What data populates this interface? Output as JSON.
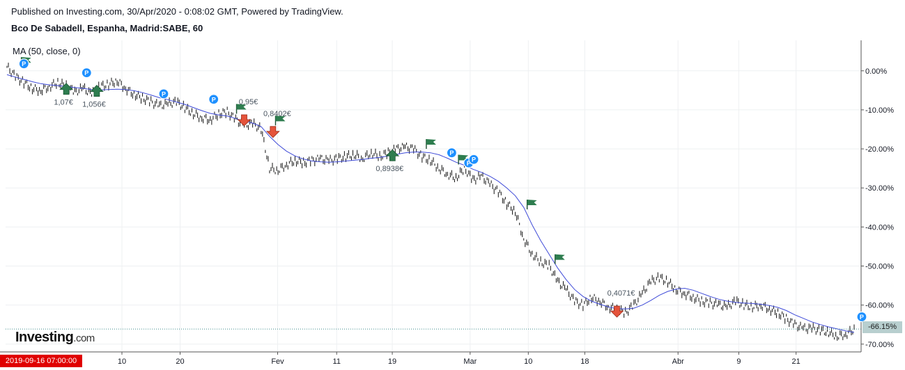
{
  "header": {
    "published": "Published on Investing.com, 30/Apr/2020 - 0:08:02 GMT, Powered by TradingView.",
    "symbol": "Bco De Sabadell, Espanha, Madrid:SABE, 60"
  },
  "indicator": {
    "label": "MA (50, close, 0)"
  },
  "logo": {
    "brand": "Investing",
    "suffix": ".com"
  },
  "cursor_date": "2019-09-16 07:00:00",
  "last_value": "-66.15%",
  "colors": {
    "ma": "#3f4bd8",
    "bars": "#111111",
    "buy": "#2e7d4f",
    "sell": "#e5533b",
    "pin": "#1e90ff",
    "last_badge": "#b8cfcf",
    "date_flag": "#e00000",
    "grid": "#eef0f2"
  },
  "chart_data": {
    "type": "line",
    "title": "",
    "xlabel": "",
    "ylabel": "",
    "x_ticks": [
      "10",
      "20",
      "Fev",
      "11",
      "19",
      "Mar",
      "10",
      "18",
      "Abr",
      "9",
      "21"
    ],
    "y_ticks": [
      "0.00%",
      "-10.00%",
      "-20.00%",
      "-30.00%",
      "-40.00%",
      "-50.00%",
      "-60.00%",
      "-70.00%"
    ],
    "y_values_ticks": [
      0,
      -10,
      -20,
      -30,
      -40,
      -50,
      -60,
      -70
    ],
    "ylim": [
      -72,
      7.8
    ],
    "x_range": [
      0,
      100
    ],
    "price_x": [
      0,
      1,
      2,
      3,
      4,
      5,
      6,
      7,
      8,
      9,
      10,
      11,
      12,
      13,
      14,
      15,
      16,
      17,
      18,
      19,
      20,
      21,
      22,
      23,
      24,
      25,
      26,
      27,
      28,
      29,
      30,
      31,
      32,
      33,
      34,
      35,
      36,
      37,
      38,
      39,
      40,
      41,
      42,
      43,
      44,
      45,
      46,
      47,
      48,
      49,
      50,
      51,
      52,
      53,
      54,
      55,
      56,
      57,
      58,
      59,
      60,
      61,
      62,
      63,
      64,
      65,
      66,
      67,
      68,
      69,
      70,
      71,
      72,
      73,
      74,
      75,
      76,
      77,
      78,
      79,
      80,
      81,
      82,
      83,
      84,
      85,
      86,
      87,
      88,
      89,
      90,
      91,
      92,
      93,
      94,
      95,
      96,
      97,
      98,
      99,
      100
    ],
    "series": [
      {
        "values": [
          1.0,
          -1.5,
          -3.0,
          -4.5,
          -5.0,
          -4.0,
          -3.0,
          -4.0,
          -5.5,
          -4.5,
          -6.0,
          -4.0,
          -3.5,
          -2.5,
          -4.5,
          -6.0,
          -7.0,
          -8.0,
          -9.0,
          -8.5,
          -8.0,
          -9.5,
          -11.0,
          -12.0,
          -12.5,
          -11.0,
          -10.5,
          -12.5,
          -14.0,
          -13.5,
          -15.0,
          -25.0,
          -25.5,
          -24.0,
          -23.0,
          -23.5,
          -23.0,
          -22.5,
          -23.0,
          -22.5,
          -22.0,
          -21.5,
          -22.5,
          -21.0,
          -22.0,
          -21.0,
          -20.0,
          -19.5,
          -20.0,
          -22.0,
          -23.0,
          -25.0,
          -26.5,
          -27.5,
          -25.0,
          -28.0,
          -27.0,
          -29.0,
          -31.0,
          -34.0,
          -36.0,
          -43.0,
          -47.0,
          -49.0,
          -50.0,
          -54.0,
          -56.0,
          -59.0,
          -60.0,
          -58.0,
          -59.0,
          -60.5,
          -61.0,
          -62.0,
          -60.0,
          -57.0,
          -54.0,
          -53.0,
          -54.0,
          -56.0,
          -57.0,
          -58.0,
          -59.0,
          -59.5,
          -60.0,
          -60.5,
          -59.0,
          -60.0,
          -60.5,
          -60.0,
          -61.0,
          -62.0,
          -63.5,
          -65.0,
          -66.0,
          -66.0,
          -66.5,
          -67.0,
          -68.0,
          -67.5,
          -66.2
        ]
      },
      {
        "name": "MA (50, close, 0)",
        "values": [
          -1.0,
          -1.6,
          -2.2,
          -2.8,
          -3.3,
          -3.6,
          -3.8,
          -4.0,
          -4.3,
          -4.5,
          -4.8,
          -4.9,
          -4.8,
          -4.7,
          -4.8,
          -5.1,
          -5.6,
          -6.2,
          -6.9,
          -7.4,
          -8.0,
          -8.6,
          -9.4,
          -10.2,
          -10.9,
          -11.3,
          -11.6,
          -12.2,
          -12.9,
          -13.4,
          -14.3,
          -16.8,
          -18.9,
          -20.6,
          -21.8,
          -22.6,
          -23.1,
          -23.3,
          -23.4,
          -23.3,
          -23.1,
          -22.9,
          -22.7,
          -22.4,
          -22.2,
          -21.8,
          -21.4,
          -21.0,
          -20.8,
          -20.8,
          -21.0,
          -21.5,
          -22.4,
          -23.4,
          -24.2,
          -25.2,
          -26.0,
          -27.0,
          -28.3,
          -30.0,
          -32.0,
          -35.0,
          -39.5,
          -43.5,
          -47.0,
          -50.5,
          -53.5,
          -56.0,
          -57.8,
          -59.0,
          -59.8,
          -60.5,
          -60.9,
          -61.0,
          -60.8,
          -60.0,
          -58.8,
          -57.5,
          -56.5,
          -55.9,
          -55.7,
          -56.2,
          -57.0,
          -57.8,
          -58.5,
          -59.0,
          -59.3,
          -59.5,
          -59.6,
          -59.8,
          -60.1,
          -60.6,
          -61.4,
          -62.5,
          -63.4,
          -64.3,
          -65.0,
          -65.6,
          -66.1,
          -66.6,
          -67.0
        ]
      }
    ],
    "annotations": [
      {
        "label": "1,07€",
        "x": 7.0,
        "y": -4.8,
        "kind": "buy"
      },
      {
        "label": "1,056€",
        "x": 10.6,
        "y": -5.3,
        "kind": "buy"
      },
      {
        "label": "0,95€",
        "x": 28.0,
        "y": -12.5,
        "kind": "sell"
      },
      {
        "label": "0,8402€",
        "x": 31.4,
        "y": -15.5,
        "kind": "sell"
      },
      {
        "label": "0,8938€",
        "x": 45.5,
        "y": -21.8,
        "kind": "buy"
      },
      {
        "label": "0,4071€",
        "x": 72.0,
        "y": -61.5,
        "kind": "sell"
      }
    ],
    "flags": [
      {
        "x": 1.7,
        "y": 3.5
      },
      {
        "x": 27.1,
        "y": -8.5
      },
      {
        "x": 31.7,
        "y": -11.5
      },
      {
        "x": 49.5,
        "y": -17.5
      },
      {
        "x": 53.3,
        "y": -21.5
      },
      {
        "x": 61.4,
        "y": -33.0
      },
      {
        "x": 64.7,
        "y": -47.0
      }
    ],
    "pins": [
      {
        "x": 2.0,
        "y": 1.8
      },
      {
        "x": 9.4,
        "y": -0.5
      },
      {
        "x": 18.5,
        "y": -5.9
      },
      {
        "x": 24.4,
        "y": -7.3
      },
      {
        "x": 52.5,
        "y": -21.0
      },
      {
        "x": 54.5,
        "y": -23.6
      },
      {
        "x": 55.1,
        "y": -22.7
      },
      {
        "x": 100.9,
        "y": -63.0
      }
    ],
    "grid": true,
    "legend": "top-left"
  }
}
